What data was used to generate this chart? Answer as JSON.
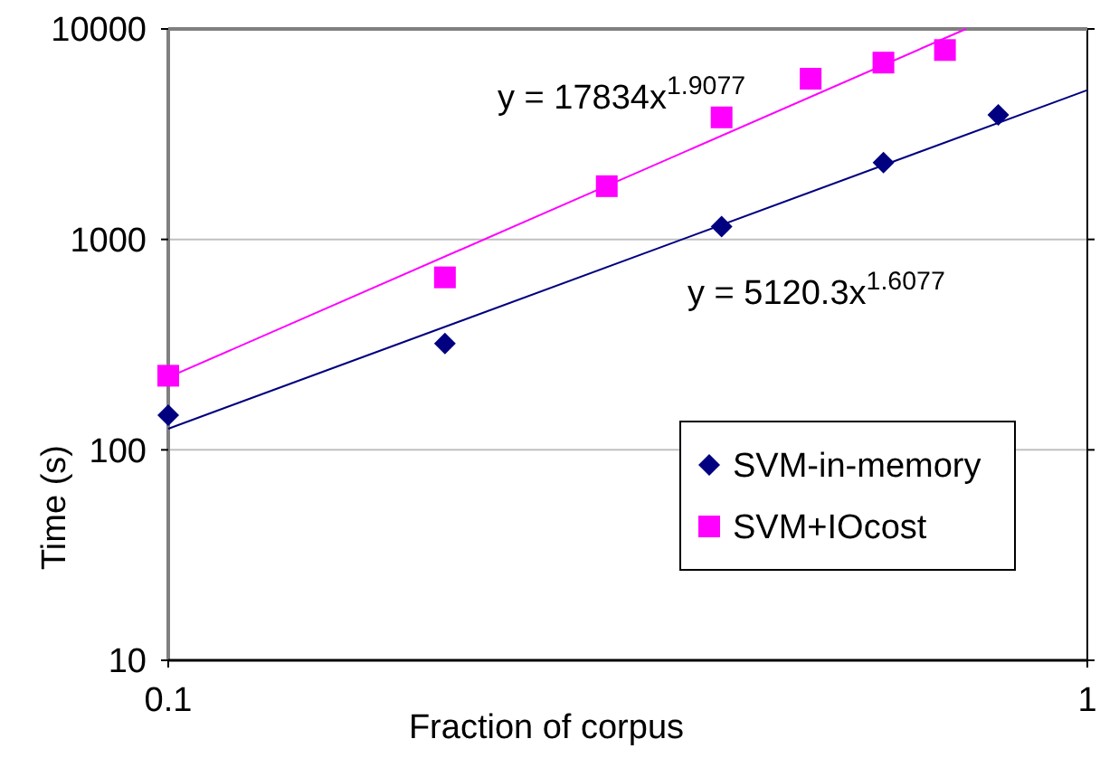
{
  "chart_data": {
    "type": "scatter",
    "xlabel": "Fraction of corpus",
    "ylabel": "Time (s)",
    "log": "xy",
    "grid": "y",
    "legend": "bottom right",
    "xlim": [
      0.1,
      1
    ],
    "xticks": [
      0.1,
      1
    ],
    "ylim": [
      10,
      10000
    ],
    "yticks": [
      10,
      100,
      1000,
      10000
    ],
    "series": [
      {
        "name": "SVM-in-memory",
        "color": "#000080",
        "marker": "diamond",
        "x": [
          0.1,
          0.2,
          0.4,
          0.6,
          0.8
        ],
        "values": [
          146,
          320,
          1150,
          2320,
          3910
        ]
      },
      {
        "name": "SVM+IOcost",
        "color": "#ff00ff",
        "marker": "square",
        "x": [
          0.1,
          0.2,
          0.3,
          0.4,
          0.5,
          0.6,
          0.7
        ],
        "values": [
          225,
          660,
          1790,
          3800,
          5800,
          6920,
          7940
        ]
      },
      {
        "type": "line",
        "color": "#ff00ff",
        "x": [
          0.1,
          0.738
        ],
        "values": [
          221,
          10000
        ]
      },
      {
        "type": "line",
        "color": "#000080",
        "x": [
          0.1,
          1
        ],
        "values": [
          126,
          5120
        ]
      }
    ],
    "annotations": [
      "y = 17834x$^{1.9077}$",
      "y = 5120.3x$^{1.6077}$"
    ]
  }
}
